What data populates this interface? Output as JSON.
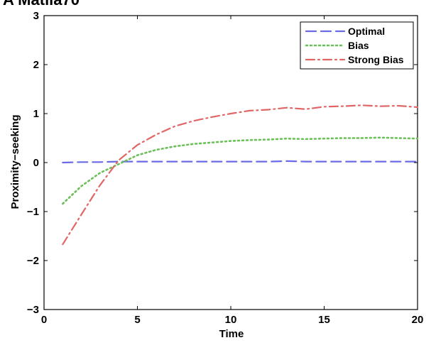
{
  "top_fragment": "A Matlla70",
  "chart_data": {
    "type": "line",
    "title": "",
    "xlabel": "Time",
    "ylabel": "Proximity−seeking",
    "xlim": [
      0,
      20
    ],
    "ylim": [
      -3,
      3
    ],
    "xticks": [
      {
        "value": 0,
        "label": "0"
      },
      {
        "value": 5,
        "label": "5"
      },
      {
        "value": 10,
        "label": "10"
      },
      {
        "value": 15,
        "label": "15"
      },
      {
        "value": 20,
        "label": "20"
      }
    ],
    "yticks": [
      {
        "value": -3,
        "label": "−3"
      },
      {
        "value": -2,
        "label": "−2"
      },
      {
        "value": -1,
        "label": "−1"
      },
      {
        "value": 0,
        "label": "0"
      },
      {
        "value": 1,
        "label": "1"
      },
      {
        "value": 2,
        "label": "2"
      },
      {
        "value": 3,
        "label": "3"
      }
    ],
    "grid": false,
    "legend_position": "top-right",
    "x": [
      1,
      2,
      3,
      4,
      5,
      6,
      7,
      8,
      9,
      10,
      11,
      12,
      13,
      14,
      15,
      16,
      17,
      18,
      19,
      20
    ],
    "series": [
      {
        "name": "Optimal",
        "color": "#6a6ae6",
        "style": "dashed",
        "values": [
          0.0,
          0.01,
          0.01,
          0.02,
          0.02,
          0.02,
          0.02,
          0.02,
          0.02,
          0.02,
          0.02,
          0.02,
          0.03,
          0.02,
          0.02,
          0.02,
          0.02,
          0.02,
          0.02,
          0.02
        ]
      },
      {
        "name": "Bias",
        "color": "#6cbf5a",
        "style": "dotted",
        "values": [
          -0.84,
          -0.48,
          -0.21,
          -0.03,
          0.15,
          0.26,
          0.33,
          0.38,
          0.41,
          0.44,
          0.46,
          0.47,
          0.49,
          0.48,
          0.49,
          0.5,
          0.5,
          0.51,
          0.5,
          0.49
        ]
      },
      {
        "name": "Strong Bias",
        "color": "#e06666",
        "style": "dashdot",
        "values": [
          -1.67,
          -1.06,
          -0.46,
          0.05,
          0.36,
          0.57,
          0.74,
          0.85,
          0.93,
          1.0,
          1.06,
          1.08,
          1.12,
          1.09,
          1.14,
          1.15,
          1.17,
          1.15,
          1.16,
          1.13
        ]
      }
    ]
  }
}
